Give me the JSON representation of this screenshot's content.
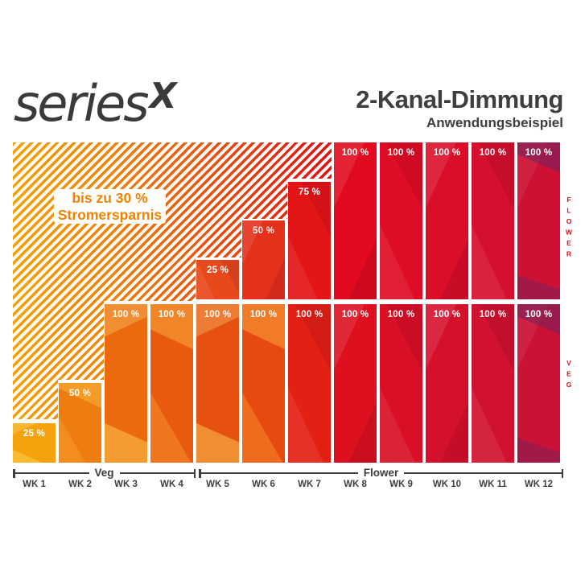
{
  "brand": {
    "logo_text": "series",
    "logo_suffix": "X",
    "color": "#3a3a3c"
  },
  "header": {
    "title": "2-Kanal-Dimmung",
    "subtitle": "Anwendungsbeispiel",
    "color": "#3e3e40"
  },
  "callout": {
    "line1": "bis zu 30 %",
    "line2": "Stromersparnis",
    "text_color": "#f08200",
    "bg": "#ffffff"
  },
  "side_labels": {
    "flower": "FLOWER",
    "veg": "VEG",
    "color": "#e30613"
  },
  "axis": {
    "color": "#3d3d3d",
    "phases": [
      {
        "label": "Veg",
        "start_week": "WK 1",
        "end_week": "WK 4"
      },
      {
        "label": "Flower",
        "start_week": "WK 5",
        "end_week": "WK 12"
      }
    ]
  },
  "chart_data": {
    "type": "bar",
    "title": "2-Kanal-Dimmung",
    "subtitle": "Anwendungsbeispiel",
    "annotation": "bis zu 30 % Stromersparnis",
    "unit": "%",
    "ylim": [
      0,
      100
    ],
    "categories": [
      "WK 1",
      "WK 2",
      "WK 3",
      "WK 4",
      "WK 5",
      "WK 6",
      "WK 7",
      "WK 8",
      "WK 9",
      "WK 10",
      "WK 11",
      "WK 12"
    ],
    "series": [
      {
        "name": "Flower",
        "values": [
          null,
          null,
          null,
          null,
          25,
          50,
          75,
          100,
          100,
          100,
          100,
          100
        ]
      },
      {
        "name": "Veg",
        "values": [
          25,
          50,
          100,
          100,
          100,
          100,
          100,
          100,
          100,
          100,
          100,
          100
        ]
      }
    ],
    "bar_colors": {
      "flower": [
        "#e8491c",
        "#e5301a",
        "#e31517",
        "#e10a1e",
        "#de0c24",
        "#da0e29",
        "#d50f2e",
        "#cd1034"
      ],
      "veg": [
        "#f5a30d",
        "#ee7d10",
        "#eb6a0e",
        "#e85a0f",
        "#e65110",
        "#e64a0e",
        "#e32014",
        "#dd101f",
        "#d90f26",
        "#d5102b",
        "#d01130",
        "#ca1136"
      ]
    },
    "hatch_gradient": [
      "#f5a000",
      "#e30613"
    ],
    "legend_position": "right-vertical",
    "grid": false
  }
}
